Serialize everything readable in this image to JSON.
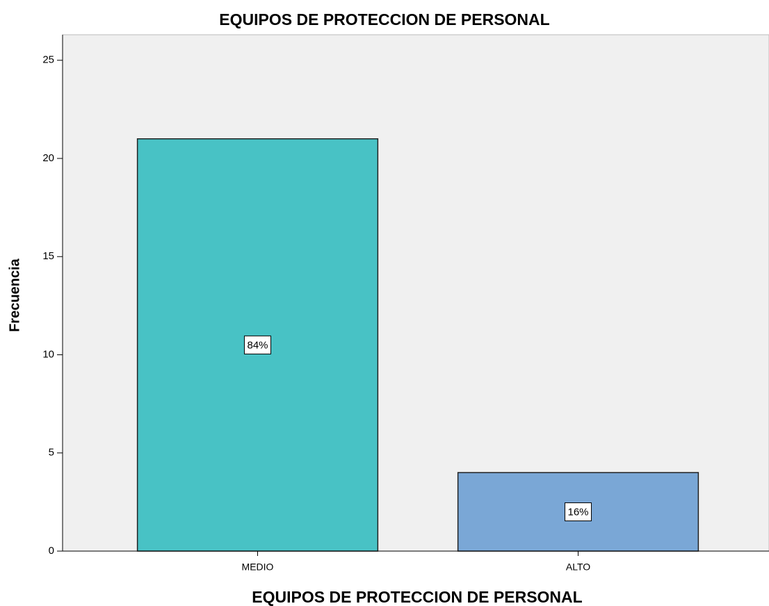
{
  "chart_data": {
    "type": "bar",
    "title": "EQUIPOS DE PROTECCION DE PERSONAL",
    "x_label": "EQUIPOS DE PROTECCION DE PERSONAL",
    "y_label": "Frecuencia",
    "categories": [
      "MEDIO",
      "ALTO"
    ],
    "values": [
      21,
      4
    ],
    "value_labels": [
      "84%",
      "16%"
    ],
    "colors": [
      "#48c2c5",
      "#7aa7d6"
    ],
    "ylim": [
      0,
      26.3
    ],
    "yticks": [
      0,
      5,
      10,
      15,
      20,
      25
    ]
  }
}
